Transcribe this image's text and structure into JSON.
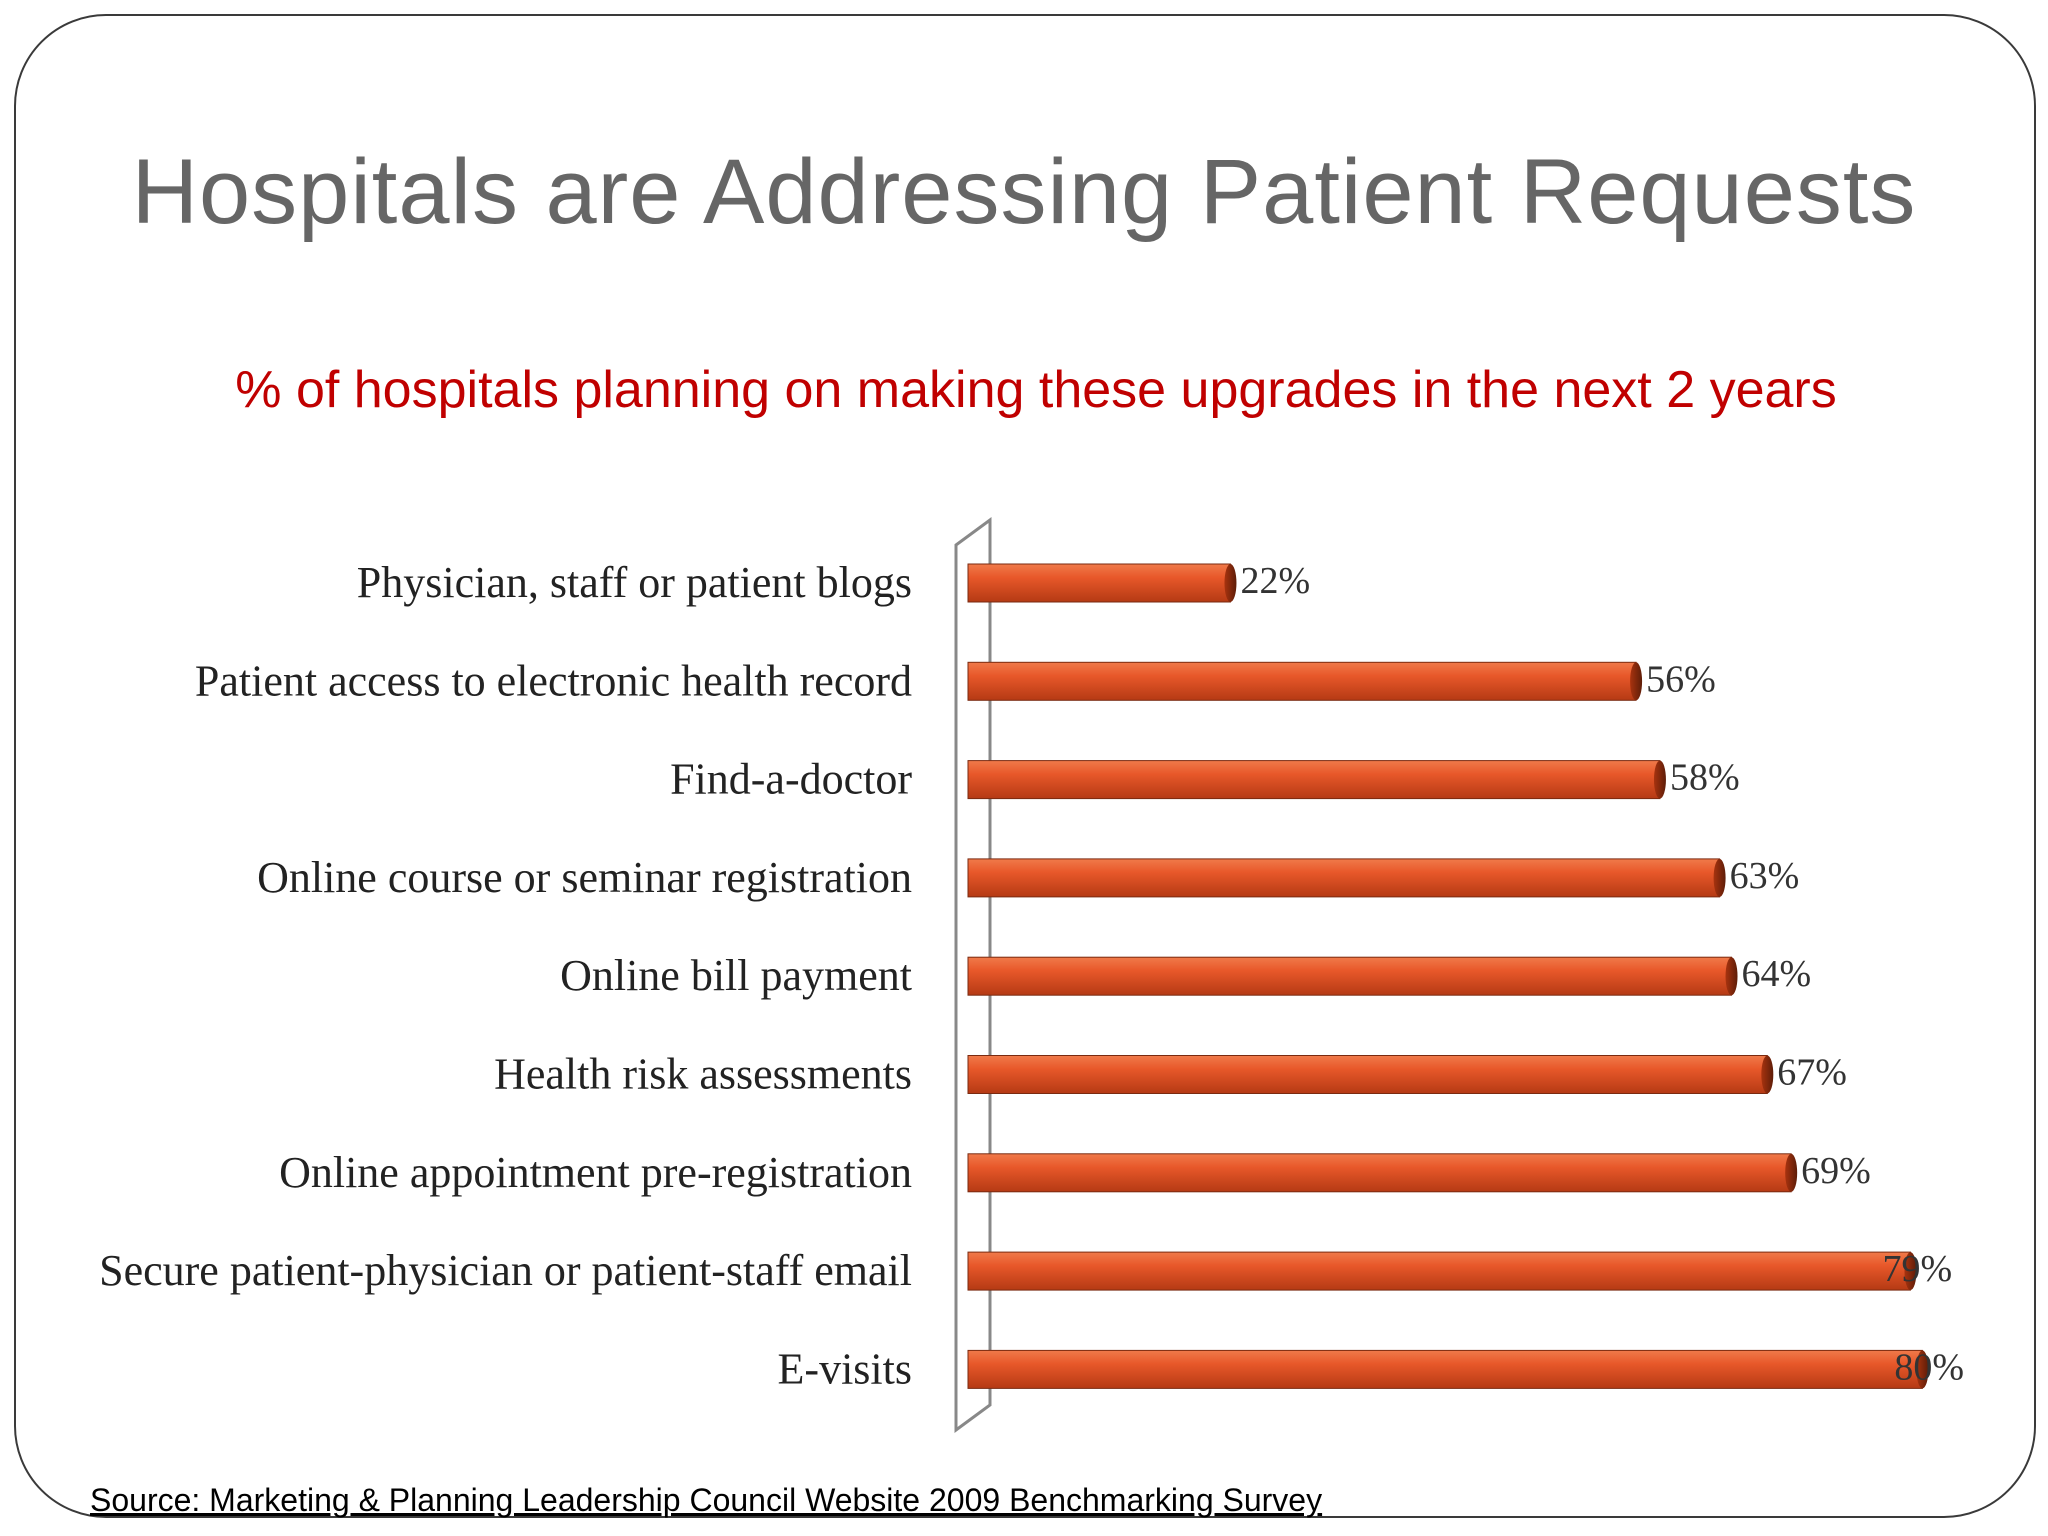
{
  "slide": {
    "title": "Hospitals are Addressing Patient Requests",
    "source": "Source: Marketing & Planning Leadership Council Website 2009 Benchmarking Survey"
  },
  "chart_data": {
    "type": "bar",
    "orientation": "horizontal",
    "title": "% of hospitals planning on making these upgrades in the next 2 years",
    "categories": [
      "Physician, staff or patient blogs",
      "Patient access to electronic health record",
      "Find-a-doctor",
      "Online course or seminar registration",
      "Online bill payment",
      "Health risk assessments",
      "Online appointment pre-registration",
      "Secure patient-physician or patient-staff email",
      "E-visits"
    ],
    "values": [
      22,
      56,
      58,
      63,
      64,
      67,
      69,
      79,
      80
    ],
    "value_labels": [
      "22%",
      "56%",
      "58%",
      "63%",
      "64%",
      "67%",
      "69%",
      "79%",
      "80%"
    ],
    "xlim": [
      0,
      80
    ],
    "grid": false,
    "legend": "none",
    "bar_color": "#e8582a",
    "bar_edge_color": "#7a2a10"
  }
}
